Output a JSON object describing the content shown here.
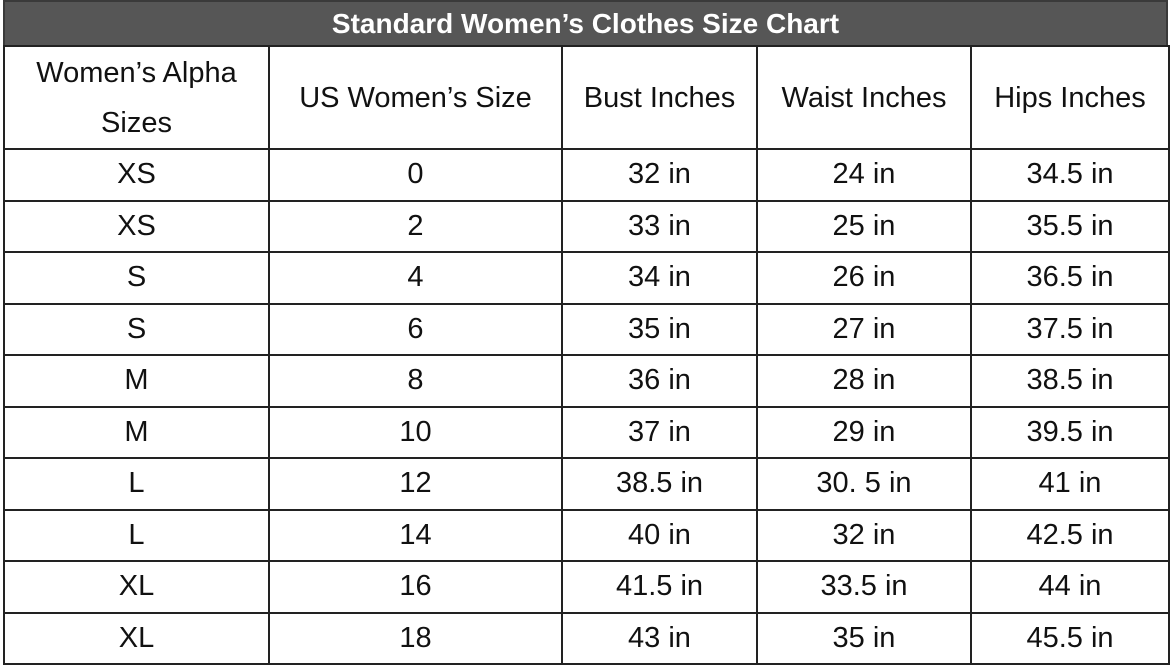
{
  "title": "Standard Women’s Clothes Size Chart",
  "columns": [
    "Women’s Alpha Sizes",
    "US Women’s Size",
    "Bust Inches",
    "Waist Inches",
    "Hips Inches"
  ],
  "rows": [
    [
      "XS",
      "0",
      "32 in",
      "24 in",
      "34.5 in"
    ],
    [
      "XS",
      "2",
      "33 in",
      "25 in",
      "35.5 in"
    ],
    [
      "S",
      "4",
      "34 in",
      "26 in",
      "36.5 in"
    ],
    [
      "S",
      "6",
      "35 in",
      "27 in",
      "37.5 in"
    ],
    [
      "M",
      "8",
      "36 in",
      "28 in",
      "38.5 in"
    ],
    [
      "M",
      "10",
      "37 in",
      "29 in",
      "39.5 in"
    ],
    [
      "L",
      "12",
      "38.5 in",
      "30. 5 in",
      "41 in"
    ],
    [
      "L",
      "14",
      "40 in",
      "32 in",
      "42.5 in"
    ],
    [
      "XL",
      "16",
      "41.5 in",
      "33.5 in",
      "44 in"
    ],
    [
      "XL",
      "18",
      "43 in",
      "35 in",
      "45.5 in"
    ]
  ],
  "colors": {
    "title_bg": "#565656",
    "title_text": "#ffffff",
    "border": "#222222"
  }
}
